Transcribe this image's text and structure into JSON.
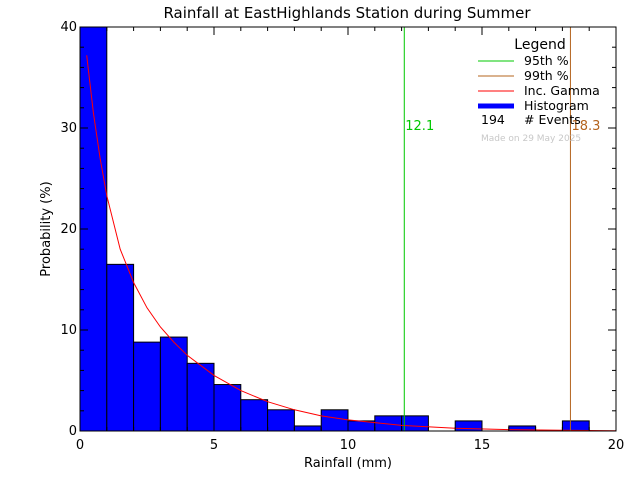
{
  "chart_data": {
    "type": "bar",
    "title": "Rainfall at EastHighlands Station during Summer",
    "xlabel": "Rainfall (mm)",
    "ylabel": "Probability (%)",
    "xlim": [
      0,
      20
    ],
    "ylim": [
      0,
      40
    ],
    "x_ticks": [
      0,
      5,
      10,
      15,
      20
    ],
    "y_ticks": [
      0,
      10,
      20,
      30,
      40
    ],
    "grid": false,
    "legend_position": "top-right",
    "histogram": {
      "name": "Histogram",
      "color": "#0000ff",
      "bin_edges": [
        0,
        1,
        2,
        3,
        4,
        5,
        6,
        7,
        8,
        9,
        10,
        11,
        12,
        13,
        14,
        15,
        16,
        17,
        18,
        19,
        20
      ],
      "values": [
        40.0,
        16.5,
        8.8,
        9.3,
        6.7,
        4.6,
        3.1,
        2.1,
        0.5,
        2.1,
        1.0,
        1.5,
        1.5,
        0.0,
        1.0,
        0.0,
        0.5,
        0.0,
        1.0,
        0.0
      ]
    },
    "gamma_curve": {
      "name": "Inc. Gamma",
      "color": "#ff0000",
      "x": [
        0.25,
        0.5,
        0.75,
        1,
        1.5,
        2,
        2.5,
        3,
        3.5,
        4,
        5,
        6,
        7,
        8,
        9,
        10,
        12,
        14,
        16,
        18,
        20
      ],
      "y": [
        37.2,
        31.5,
        27.0,
        23.3,
        18.0,
        14.7,
        12.2,
        10.3,
        8.8,
        7.5,
        5.5,
        4.0,
        2.9,
        2.1,
        1.5,
        1.1,
        0.55,
        0.28,
        0.14,
        0.07,
        0.03
      ]
    },
    "percentile_lines": [
      {
        "name": "95th %",
        "x": 12.1,
        "label": "12.1",
        "color": "#00c800"
      },
      {
        "name": "99th %",
        "x": 18.3,
        "label": "18.3",
        "color": "#b4641e"
      }
    ],
    "legend": {
      "title": "Legend",
      "entries": [
        "95th %",
        "99th %",
        "Inc. Gamma",
        "Histogram"
      ],
      "events_count": "194",
      "events_label": "# Events",
      "made_on": "Made on 29 May 2025"
    }
  }
}
